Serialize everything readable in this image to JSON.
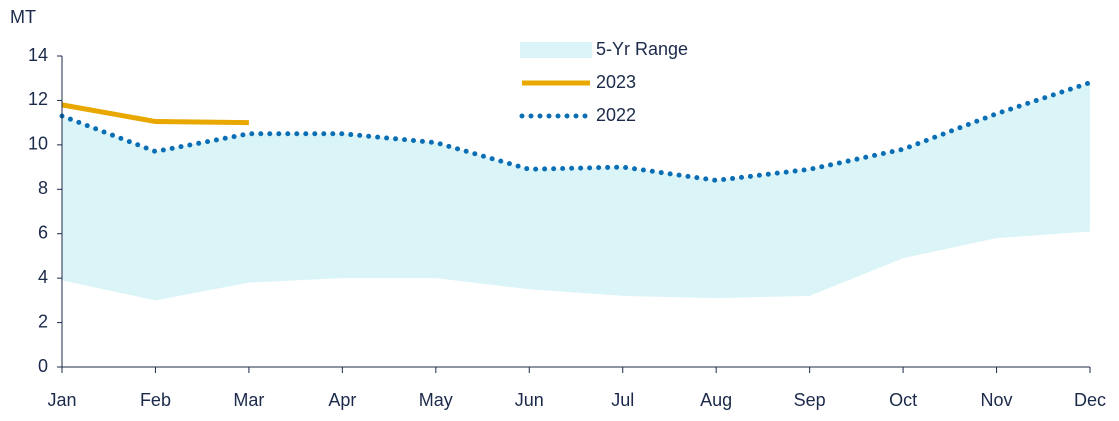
{
  "chart_data": {
    "type": "line",
    "y_label": "MT",
    "categories": [
      "Jan",
      "Feb",
      "Mar",
      "Apr",
      "May",
      "Jun",
      "Jul",
      "Aug",
      "Sep",
      "Oct",
      "Nov",
      "Dec"
    ],
    "ylim": [
      0,
      14
    ],
    "yticks": [
      0,
      2,
      4,
      6,
      8,
      10,
      12,
      14
    ],
    "series": [
      {
        "name": "5-Yr Range",
        "color": "#dbf4f8",
        "kind": "range",
        "values": [
          11.3,
          9.7,
          10.5,
          10.5,
          10.1,
          8.9,
          9.0,
          8.4,
          8.9,
          9.8,
          11.4,
          12.8
        ],
        "lower": [
          3.9,
          3.0,
          3.8,
          4.0,
          4.0,
          3.5,
          3.2,
          3.1,
          3.2,
          4.9,
          5.8,
          6.1
        ]
      },
      {
        "name": "2023",
        "color": "#e8a800",
        "kind": "solid",
        "values": [
          11.8,
          11.05,
          11.0,
          null,
          null,
          null,
          null,
          null,
          null,
          null,
          null,
          null
        ]
      },
      {
        "name": "2022",
        "color": "#0a6eb4",
        "kind": "dotted",
        "values": [
          11.3,
          9.7,
          10.5,
          10.5,
          10.1,
          8.9,
          9.0,
          8.4,
          8.9,
          9.8,
          11.4,
          12.8
        ]
      }
    ]
  }
}
